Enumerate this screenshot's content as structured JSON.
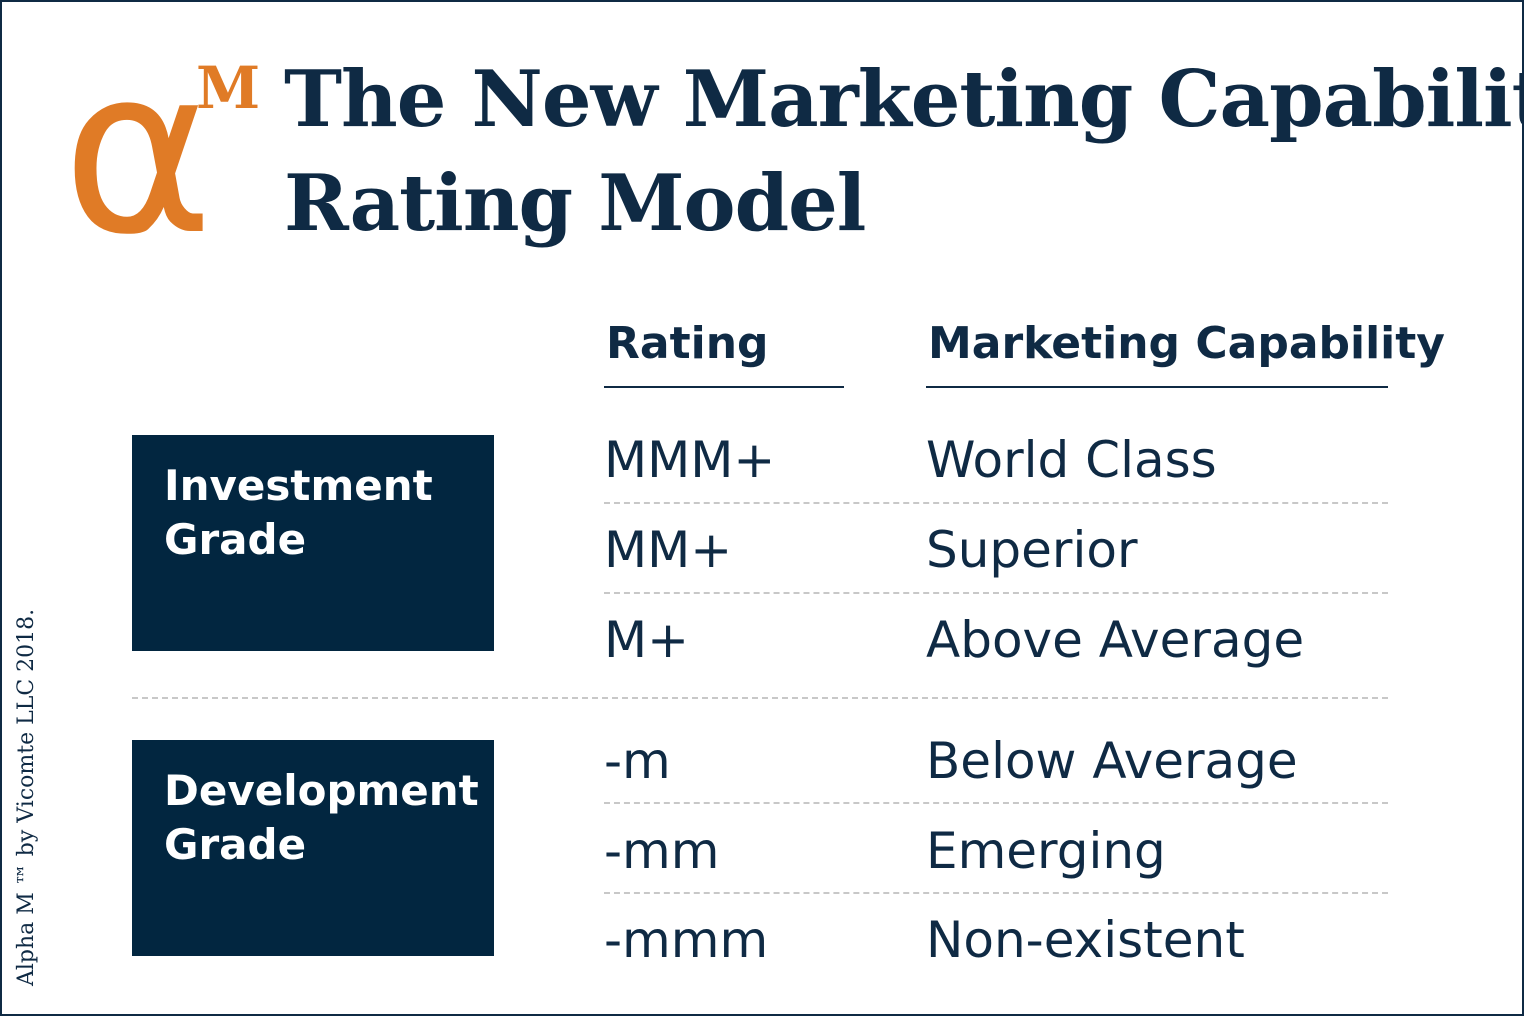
{
  "logo": {
    "symbol": "α",
    "superscript": "M",
    "color": "#e07b26"
  },
  "title": {
    "line1": "The New Marketing Capability",
    "line2": "Rating Model"
  },
  "columns": {
    "rating": "Rating",
    "capability": "Marketing Capability"
  },
  "grades": {
    "investment": {
      "line1": "Investment",
      "line2": "Grade"
    },
    "development": {
      "line1": "Development",
      "line2": "Grade"
    }
  },
  "rows": [
    {
      "rating": "MMM+",
      "capability": "World Class"
    },
    {
      "rating": "MM+",
      "capability": "Superior"
    },
    {
      "rating": "M+",
      "capability": "Above Average"
    },
    {
      "rating": "-m",
      "capability": "Below Average"
    },
    {
      "rating": "-mm",
      "capability": "Emerging"
    },
    {
      "rating": "-mmm",
      "capability": "Non-existent"
    }
  ],
  "copyright": "Alpha M ™ by Vicomte LLC 2018.",
  "colors": {
    "navy": "#0f2a44",
    "box": "#022640",
    "orange": "#e07b26",
    "dash": "#c8c8c8"
  }
}
